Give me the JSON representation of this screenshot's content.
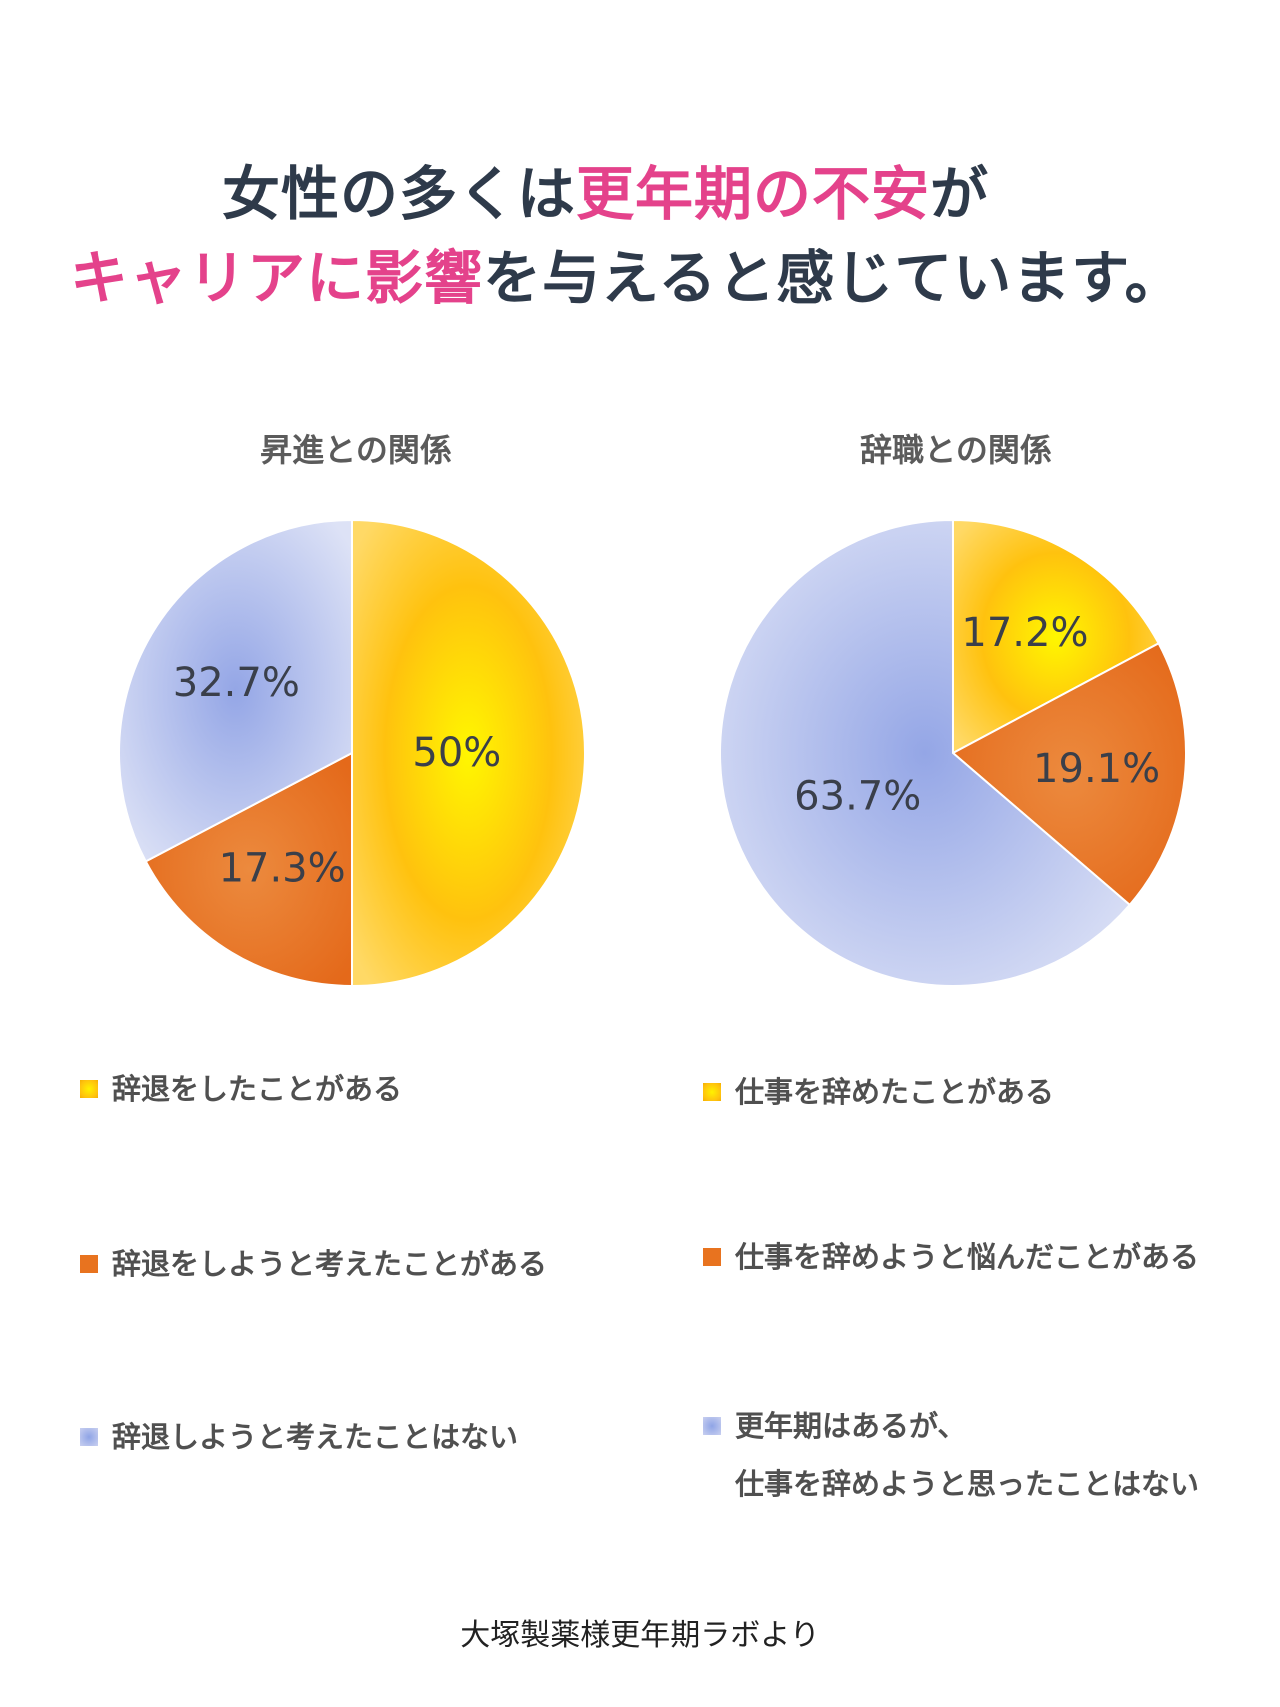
{
  "headline": {
    "line1_part1": "女性の多くは",
    "line1_accent": "更年期の不安",
    "line1_part2": "が",
    "line2_accent": "キャリアに影響",
    "line2_part2": "を与えると感じています。"
  },
  "colors": {
    "accent": "#e4428b",
    "text_dark": "#2e3a4a",
    "yellow": "#ffc20e",
    "orange": "#e8731f",
    "blue": "#b3bfee"
  },
  "chart_data": [
    {
      "type": "pie",
      "title": "昇進との関係",
      "slices": [
        {
          "label": "辞退をしたことがある",
          "value": 50,
          "display": "50%",
          "color": "yellow"
        },
        {
          "label": "辞退をしようと考えたことがある",
          "value": 17.3,
          "display": "17.3%",
          "color": "orange"
        },
        {
          "label": "辞退しようと考えたことはない",
          "value": 32.7,
          "display": "32.7%",
          "color": "blue"
        }
      ]
    },
    {
      "type": "pie",
      "title": "辞職との関係",
      "slices": [
        {
          "label": "仕事を辞めたことがある",
          "value": 17.2,
          "display": "17.2%",
          "color": "yellow"
        },
        {
          "label": "仕事を辞めようと悩んだことがある",
          "value": 19.1,
          "display": "19.1%",
          "color": "orange"
        },
        {
          "label": "更年期はあるが、\n仕事を辞めようと思ったことはない",
          "value": 63.7,
          "display": "63.7%",
          "color": "blue"
        }
      ]
    }
  ],
  "source": "大塚製薬様更年期ラボより"
}
